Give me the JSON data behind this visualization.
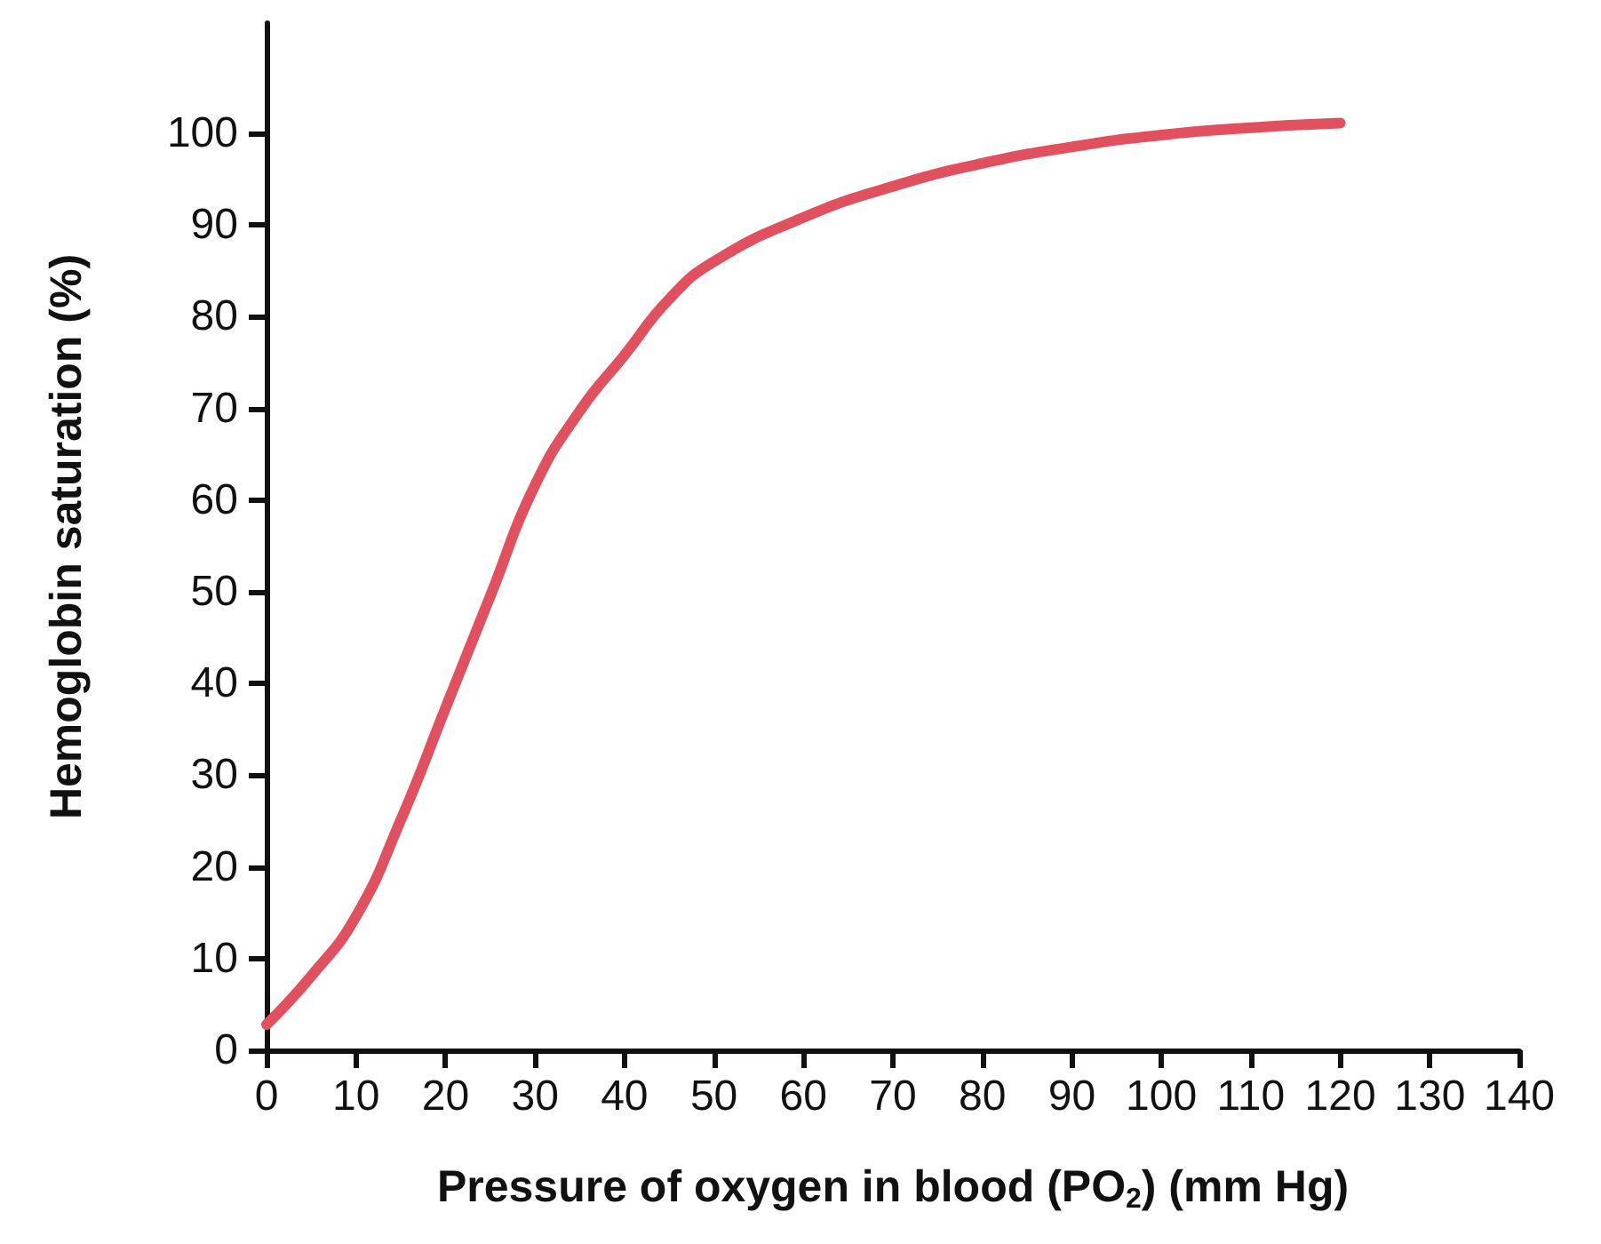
{
  "chart_data": {
    "type": "line",
    "xlabel": "Pressure of oxygen in blood (PO$_{2}$) (mm Hg)",
    "ylabel": "Hemoglobin saturation (%)",
    "x": [
      0,
      5,
      10,
      15,
      20,
      25,
      30,
      35,
      40,
      45,
      50,
      60,
      70,
      80,
      90,
      100,
      110,
      120
    ],
    "series": [
      {
        "color": "#e0505e",
        "values": [
          2.8,
          8.1,
          14.6,
          25.1,
          37.3,
          49.5,
          61.6,
          69.7,
          75.8,
          81.9,
          86,
          90.8,
          94.2,
          96.7,
          98.5,
          99.8,
          100.6,
          101.1
        ]
      }
    ],
    "xlim": [
      0,
      140
    ],
    "xticks": [
      0,
      10,
      20,
      30,
      40,
      50,
      60,
      70,
      80,
      90,
      100,
      110,
      120,
      130,
      140
    ],
    "ylim": [
      0,
      112
    ],
    "yticks": [
      0,
      10,
      20,
      30,
      40,
      50,
      60,
      70,
      80,
      90,
      100
    ],
    "grid": false,
    "marker": "none",
    "line_style": "solid"
  }
}
